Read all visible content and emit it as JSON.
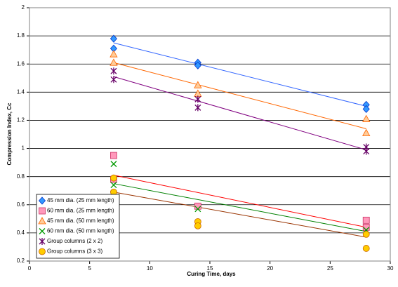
{
  "chart_data": {
    "type": "scatter",
    "x_label": "Curing Time, days",
    "y_label": "Compression Index, Cc",
    "xlim": [
      0,
      30
    ],
    "xticks": [
      0,
      5,
      10,
      15,
      20,
      25,
      30
    ],
    "ylim": [
      0.2,
      2
    ],
    "yticks": [
      0.2,
      0.4,
      0.6,
      0.8,
      1,
      1.2,
      1.4,
      1.6,
      1.8,
      2
    ],
    "grid": true,
    "legend": "lower left",
    "trend_x": [
      7,
      28
    ],
    "series": [
      {
        "name": "45 mm dia. (25 mm length)",
        "marker": "diamond",
        "color": "#3399ff",
        "edge": "#0033cc",
        "trend_color": "#3366ff",
        "x": [
          7,
          7,
          14,
          14,
          28,
          28
        ],
        "values": [
          1.78,
          1.71,
          1.61,
          1.59,
          1.31,
          1.28
        ],
        "trend_values": [
          1.75,
          1.3
        ]
      },
      {
        "name": "60 mm dia. (25 mm length)",
        "marker": "square",
        "color": "#ff99bb",
        "edge": "#cc3366",
        "trend_color": "#ff0000",
        "x": [
          7,
          7,
          14,
          28,
          28
        ],
        "values": [
          0.95,
          0.78,
          0.59,
          0.49,
          0.44
        ],
        "trend_values": [
          0.81,
          0.44
        ]
      },
      {
        "name": "45 mm dia. (50 mm length)",
        "marker": "triangle",
        "color": "#ffcc99",
        "edge": "#ff6600",
        "trend_color": "#ff6600",
        "x": [
          7,
          7,
          14,
          14,
          28,
          28
        ],
        "values": [
          1.67,
          1.61,
          1.45,
          1.39,
          1.21,
          1.11
        ],
        "trend_values": [
          1.61,
          1.14
        ]
      },
      {
        "name": "60 mm dia. (50 mm length)",
        "marker": "x",
        "color": "#009900",
        "edge": "#009900",
        "trend_color": "#008000",
        "x": [
          7,
          7,
          14,
          28
        ],
        "values": [
          0.89,
          0.74,
          0.57,
          0.42
        ],
        "trend_values": [
          0.75,
          0.41
        ]
      },
      {
        "name": "Group columns (2 x 2)",
        "marker": "star",
        "color": "#660066",
        "edge": "#660066",
        "trend_color": "#800080",
        "x": [
          7,
          7,
          14,
          14,
          28,
          28
        ],
        "values": [
          1.55,
          1.49,
          1.35,
          1.29,
          1.01,
          0.98
        ],
        "trend_values": [
          1.51,
          0.99
        ]
      },
      {
        "name": "Group columns (3 x 3)",
        "marker": "circle",
        "color": "#ffcc00",
        "edge": "#cc6600",
        "trend_color": "#993300",
        "x": [
          7,
          7,
          14,
          14,
          28,
          28
        ],
        "values": [
          0.79,
          0.69,
          0.48,
          0.45,
          0.39,
          0.29
        ],
        "trend_values": [
          0.69,
          0.37
        ]
      }
    ]
  }
}
